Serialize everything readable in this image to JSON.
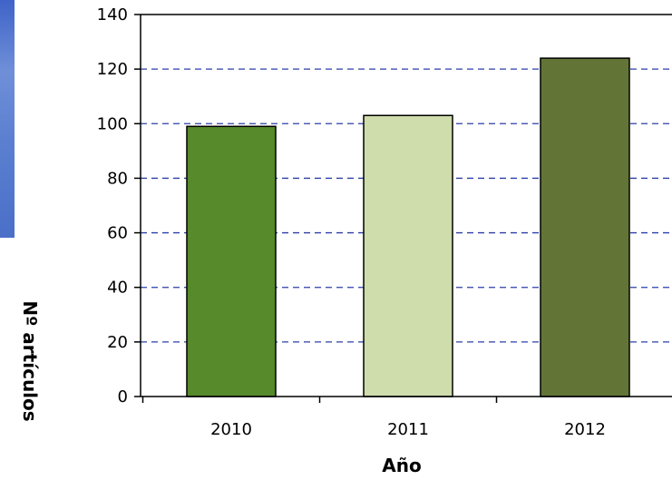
{
  "chart_data": {
    "type": "bar",
    "categories": [
      "2010",
      "2011",
      "2012"
    ],
    "values": [
      99,
      103,
      124
    ],
    "colors": [
      "#568a2a",
      "#cfdcab",
      "#627537"
    ],
    "xlabel": "Año",
    "ylabel": "Nº artículos",
    "ylim": [
      0,
      140
    ],
    "yticks": [
      0,
      20,
      40,
      60,
      80,
      100,
      120,
      140
    ],
    "grid": true,
    "grid_style": "dashed",
    "grid_color": "#2b3fa8"
  }
}
